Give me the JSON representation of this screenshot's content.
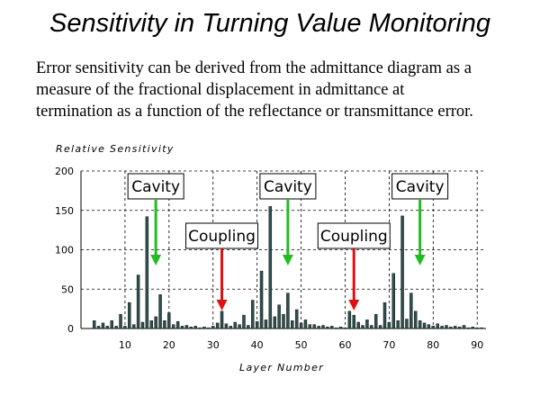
{
  "slide": {
    "title": "Sensitivity in Turning Value Monitoring",
    "description_lines": [
      "Error sensitivity can be derived from the admittance diagram as a",
      "measure of the fractional displacement in admittance at",
      "termination as a function of the reflectance or transmittance error."
    ]
  },
  "chart_data": {
    "type": "bar",
    "ylabel": "Relative Sensitivity",
    "xlabel": "Layer Number",
    "xlim": [
      0,
      92
    ],
    "ylim": [
      0,
      200
    ],
    "x_ticks": [
      10,
      20,
      30,
      40,
      50,
      60,
      70,
      80,
      90
    ],
    "y_ticks": [
      0,
      50,
      100,
      150,
      200
    ],
    "grid": true,
    "bar_color": "#2f4f4f",
    "layers": [
      1,
      2,
      3,
      4,
      5,
      6,
      7,
      8,
      9,
      10,
      11,
      12,
      13,
      14,
      15,
      16,
      17,
      18,
      19,
      20,
      21,
      22,
      23,
      24,
      25,
      26,
      27,
      28,
      29,
      30,
      31,
      32,
      33,
      34,
      35,
      36,
      37,
      38,
      39,
      40,
      41,
      42,
      43,
      44,
      45,
      46,
      47,
      48,
      49,
      50,
      51,
      52,
      53,
      54,
      55,
      56,
      57,
      58,
      59,
      60,
      61,
      62,
      63,
      64,
      65,
      66,
      67,
      68,
      69,
      70,
      71,
      72,
      73,
      74,
      75,
      76,
      77,
      78,
      79,
      80,
      81,
      82,
      83,
      84,
      85,
      86,
      87,
      88,
      89,
      90,
      91
    ],
    "values": [
      0,
      0,
      10,
      3,
      7,
      3,
      10,
      3,
      18,
      3,
      33,
      5,
      68,
      8,
      142,
      10,
      15,
      43,
      10,
      20,
      5,
      9,
      3,
      4,
      2,
      3,
      1,
      2,
      1,
      3,
      7,
      22,
      6,
      3,
      8,
      5,
      17,
      4,
      36,
      9,
      73,
      11,
      155,
      15,
      30,
      18,
      45,
      10,
      24,
      7,
      11,
      5,
      5,
      3,
      4,
      2,
      3,
      1,
      2,
      1,
      22,
      17,
      8,
      4,
      11,
      4,
      18,
      4,
      33,
      8,
      70,
      10,
      143,
      12,
      45,
      22,
      10,
      7,
      5,
      3,
      6,
      3,
      4,
      2,
      3,
      2,
      4,
      1,
      2,
      1,
      1
    ],
    "annotations": [
      {
        "label": "Cavity",
        "layer": 17,
        "color": "#22bb22"
      },
      {
        "label": "Coupling",
        "layer": 32,
        "color": "#dd1111"
      },
      {
        "label": "Cavity",
        "layer": 47,
        "color": "#22bb22"
      },
      {
        "label": "Coupling",
        "layer": 62,
        "color": "#dd1111"
      },
      {
        "label": "Cavity",
        "layer": 77,
        "color": "#22bb22"
      }
    ]
  }
}
